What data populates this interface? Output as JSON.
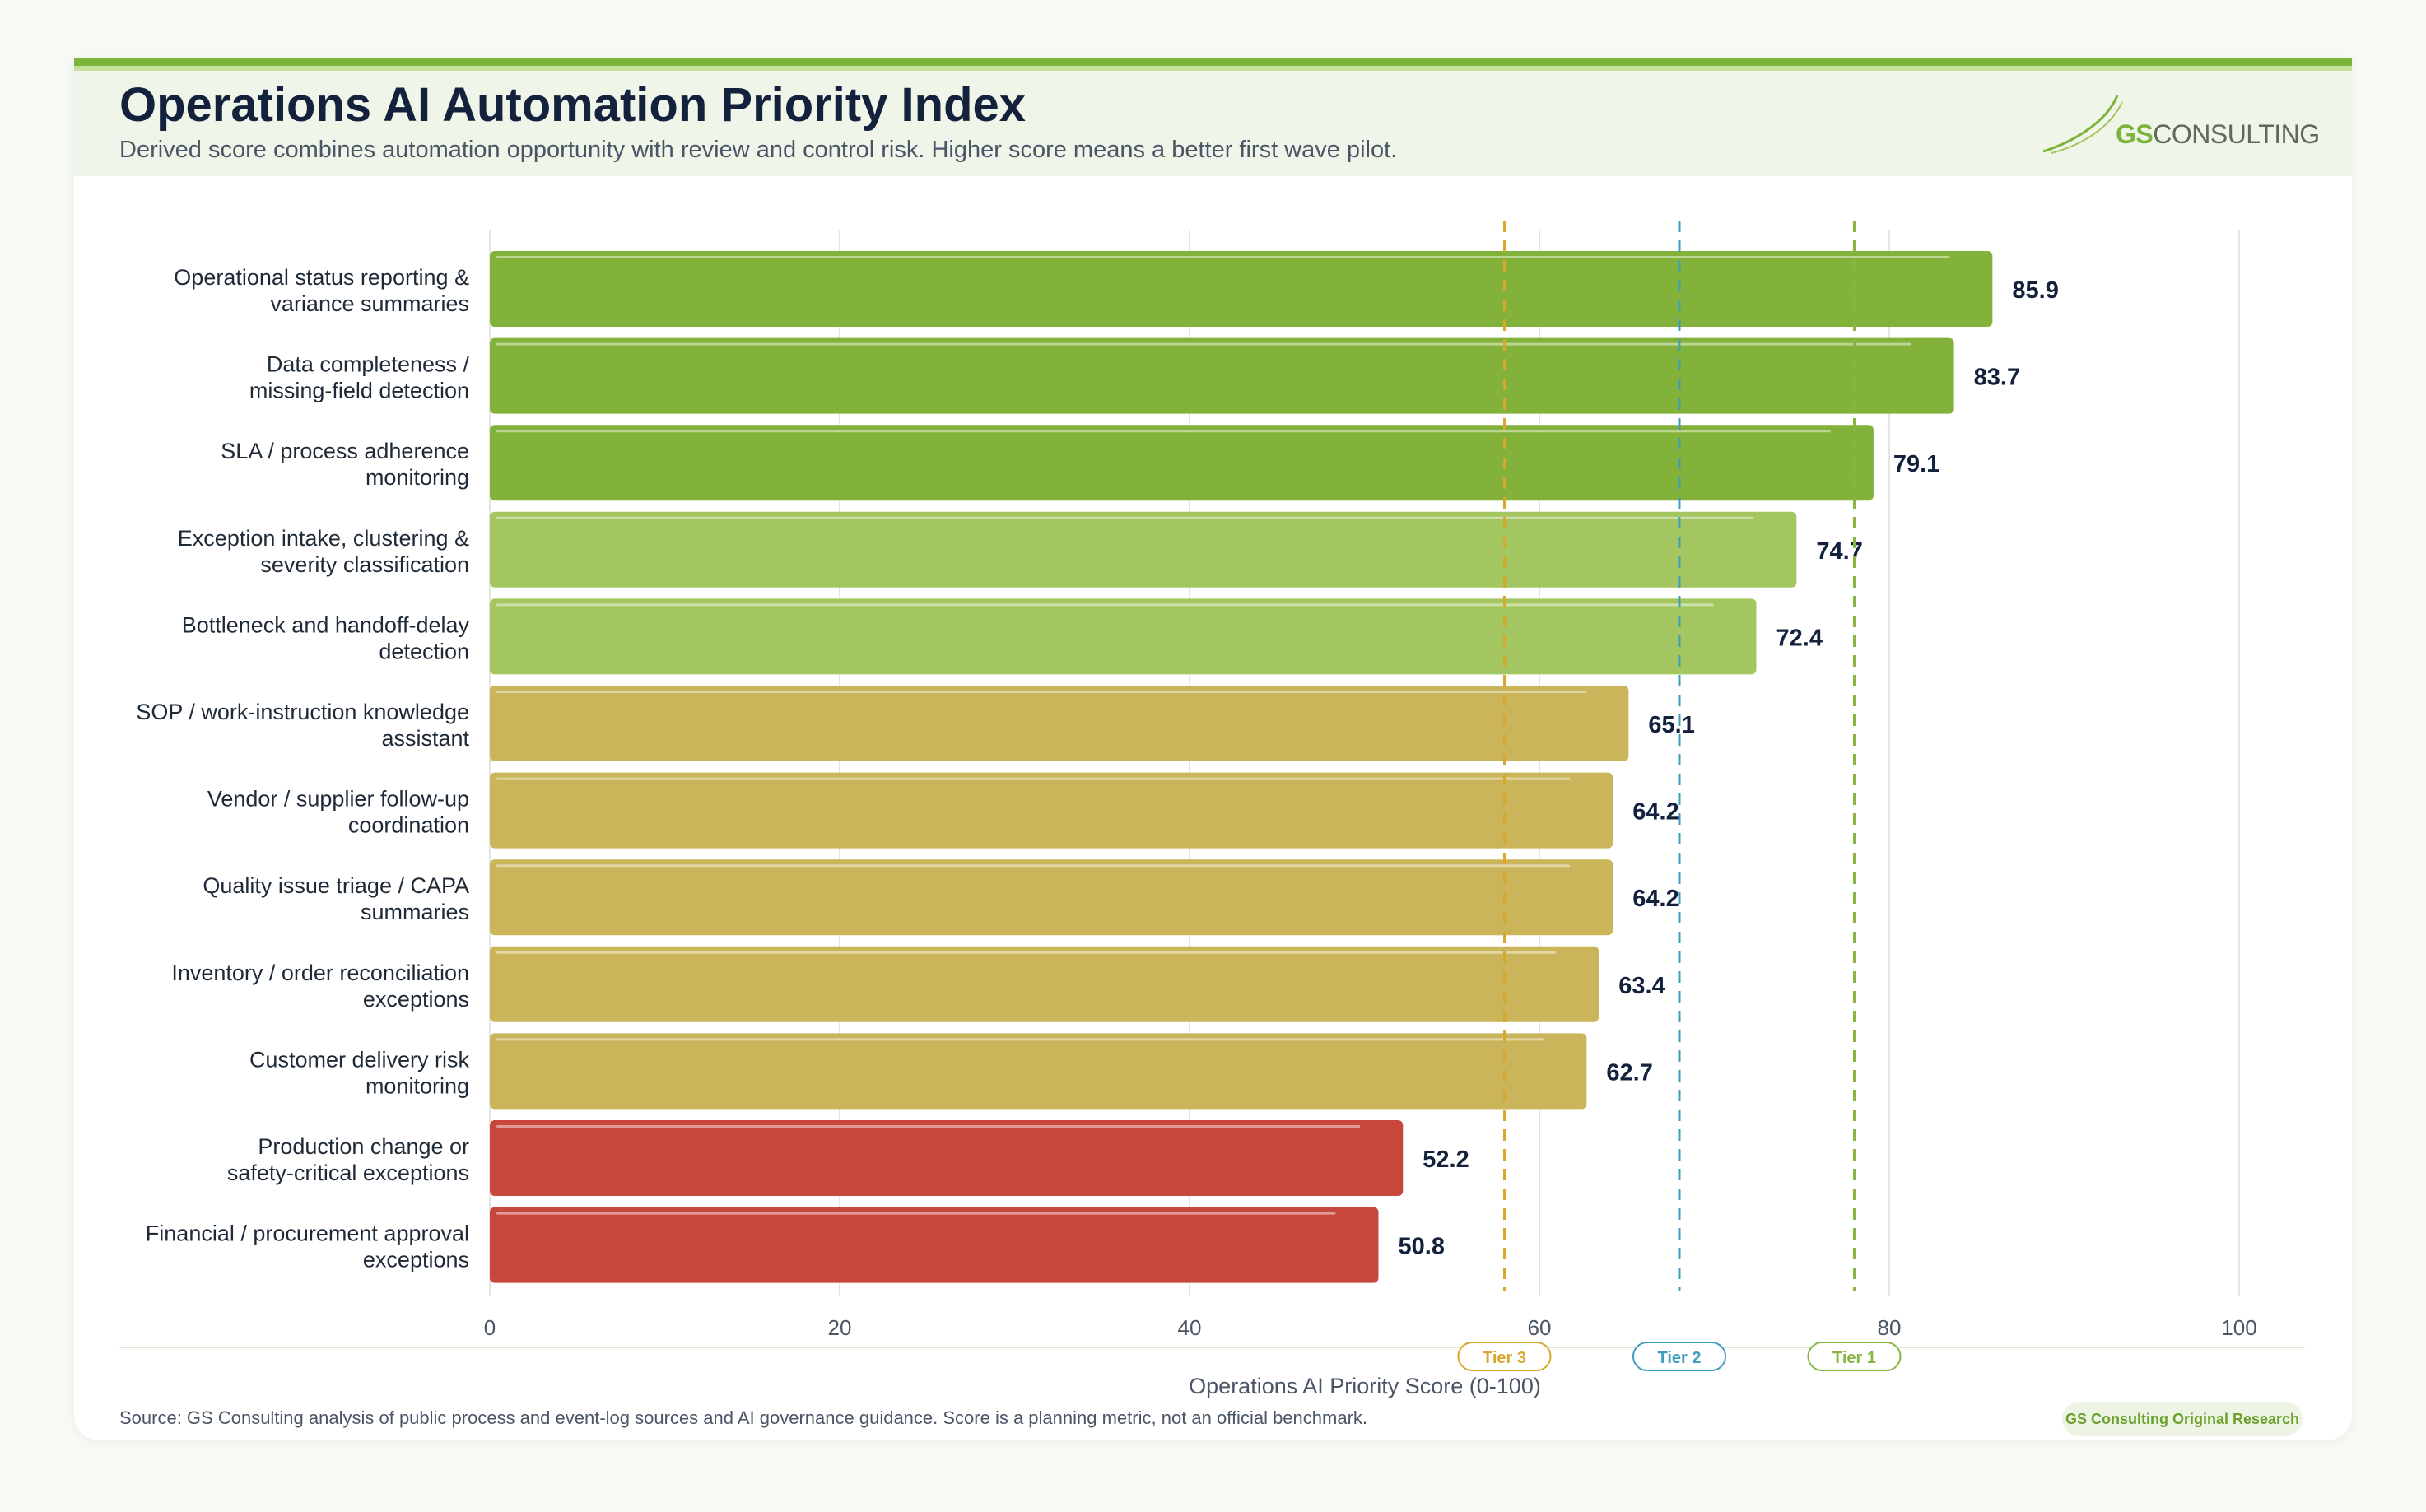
{
  "header": {
    "title": "Operations AI Automation Priority Index",
    "subtitle": "Derived score combines automation opportunity with review and control risk. Higher score means a better first wave pilot.",
    "logo_prefix": "GS",
    "logo_suffix": "CONSULTING"
  },
  "footer": {
    "source": "Source: GS Consulting analysis of public process and event-log sources and AI governance guidance. Score is a planning metric, not an official benchmark.",
    "badge": "GS Consulting Original Research"
  },
  "colors": {
    "dark_green": "#83b23a",
    "light_green": "#a3c660",
    "gold": "#cbb55a",
    "red": "#c8473d",
    "tier3": "#d9a72b",
    "tier2": "#3f9dbd",
    "tier1": "#86b542"
  },
  "chart_data": {
    "type": "bar",
    "orientation": "horizontal",
    "title": "Operations AI Automation Priority Index",
    "xlabel": "Operations AI Priority Score (0-100)",
    "xlim": [
      0,
      100
    ],
    "xticks": [
      0,
      20,
      40,
      60,
      80,
      100
    ],
    "grid": true,
    "categories": [
      [
        "Operational status reporting &",
        "variance summaries"
      ],
      [
        "Data completeness /",
        "missing-field detection"
      ],
      [
        "SLA / process adherence",
        "monitoring"
      ],
      [
        "Exception intake, clustering &",
        "severity classification"
      ],
      [
        "Bottleneck and handoff-delay",
        "detection"
      ],
      [
        "SOP / work-instruction knowledge",
        "assistant"
      ],
      [
        "Vendor / supplier follow-up",
        "coordination"
      ],
      [
        "Quality issue triage / CAPA",
        "summaries"
      ],
      [
        "Inventory / order reconciliation",
        "exceptions"
      ],
      [
        "Customer delivery risk",
        "monitoring"
      ],
      [
        "Production change or",
        "safety-critical exceptions"
      ],
      [
        "Financial / procurement approval",
        "exceptions"
      ]
    ],
    "values": [
      85.9,
      83.7,
      79.1,
      74.7,
      72.4,
      65.1,
      64.2,
      64.2,
      63.4,
      62.7,
      52.2,
      50.8
    ],
    "value_labels": [
      "85.9",
      "83.7",
      "79.1",
      "74.7",
      "72.4",
      "65.1",
      "64.2",
      "64.2",
      "63.4",
      "62.7",
      "52.2",
      "50.8"
    ],
    "bar_colors": [
      "dark_green",
      "dark_green",
      "dark_green",
      "light_green",
      "light_green",
      "gold",
      "gold",
      "gold",
      "gold",
      "gold",
      "red",
      "red"
    ],
    "thresholds": [
      {
        "label": "Tier 3",
        "value": 58,
        "color": "tier3"
      },
      {
        "label": "Tier 2",
        "value": 68,
        "color": "tier2"
      },
      {
        "label": "Tier 1",
        "value": 78,
        "color": "tier1"
      }
    ]
  }
}
